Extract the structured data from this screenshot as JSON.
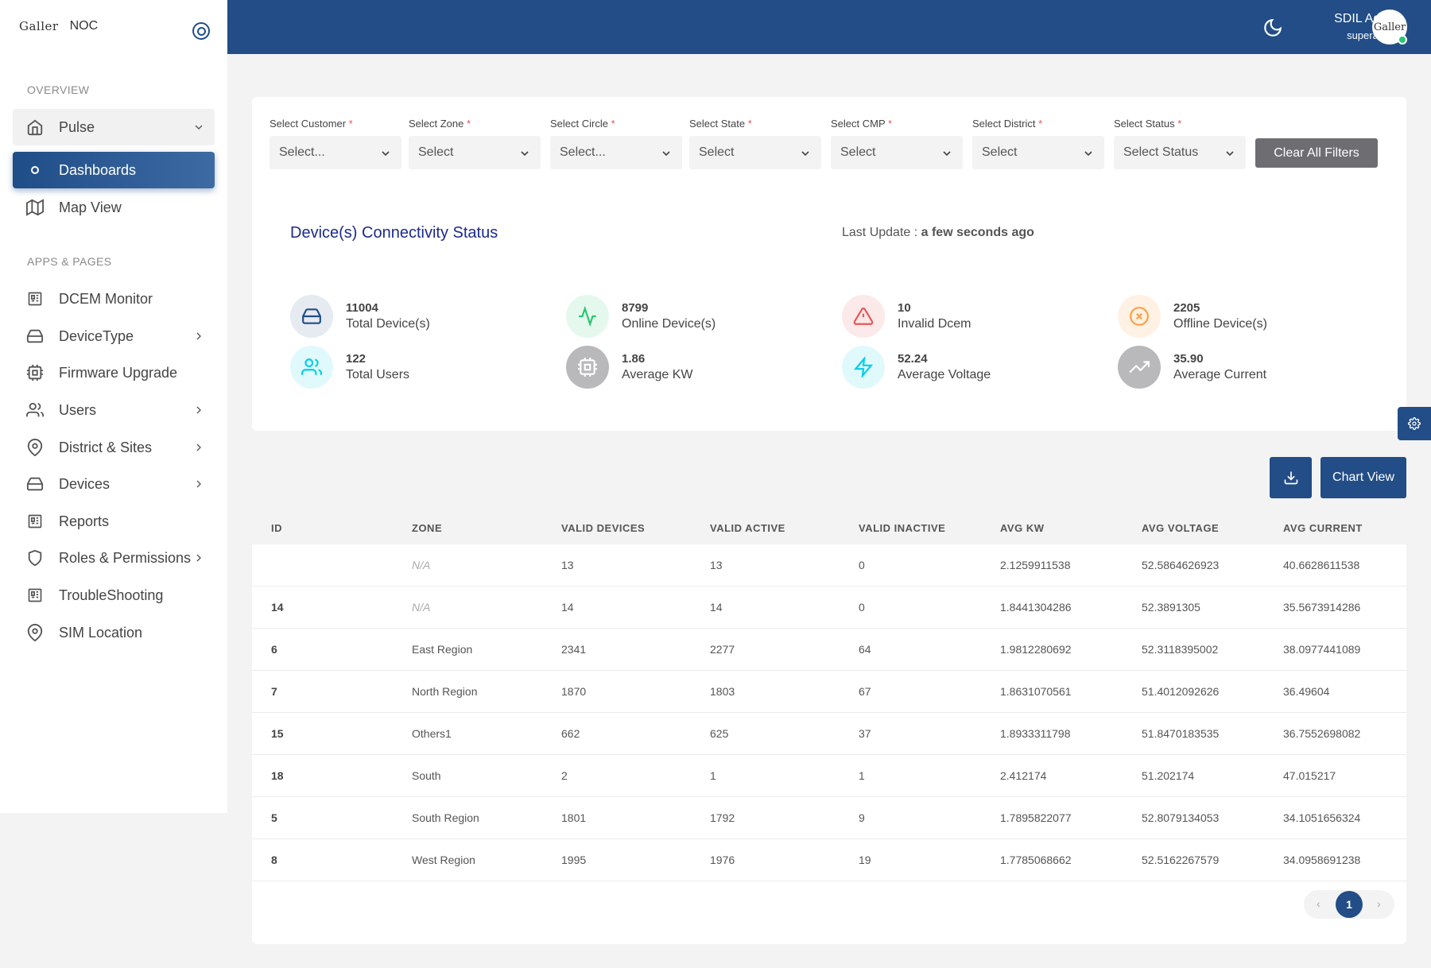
{
  "brand": {
    "logo_text": "Galler",
    "app_name": "NOC"
  },
  "sidebar": {
    "section_overview": "OVERVIEW",
    "section_apps": "APPS & PAGES",
    "items": [
      {
        "label": "Pulse",
        "icon": "home-icon"
      },
      {
        "label": "Dashboards",
        "icon": "circle-icon"
      },
      {
        "label": "Map View",
        "icon": "map-icon"
      },
      {
        "label": "DCEM Monitor",
        "icon": "grid-icon"
      },
      {
        "label": "DeviceType",
        "icon": "hard-drive-icon"
      },
      {
        "label": "Firmware Upgrade",
        "icon": "cpu-icon"
      },
      {
        "label": "Users",
        "icon": "users-icon"
      },
      {
        "label": "District & Sites",
        "icon": "map-pin-icon"
      },
      {
        "label": "Devices",
        "icon": "hard-drive-icon"
      },
      {
        "label": "Reports",
        "icon": "grid-icon"
      },
      {
        "label": "Roles & Permissions",
        "icon": "shield-icon"
      },
      {
        "label": "TroubleShooting",
        "icon": "grid-icon"
      },
      {
        "label": "SIM Location",
        "icon": "map-pin-icon"
      }
    ]
  },
  "header": {
    "user_name": "SDIL Admin",
    "user_role": "superadmin",
    "avatar_text": "Galler"
  },
  "filters": [
    {
      "label": "Select Customer",
      "value": "Select..."
    },
    {
      "label": "Select Zone",
      "value": "Select"
    },
    {
      "label": "Select Circle",
      "value": "Select..."
    },
    {
      "label": "Select State",
      "value": "Select"
    },
    {
      "label": "Select CMP",
      "value": "Select"
    },
    {
      "label": "Select District",
      "value": "Select"
    },
    {
      "label": "Select Status",
      "value": "Select Status"
    }
  ],
  "required_mark": "*",
  "clear_filters_label": "Clear All Filters",
  "status": {
    "title": "Device(s) Connectivity Status",
    "last_update_label": "Last Update : ",
    "last_update_value": "a few seconds ago",
    "stats": [
      {
        "value": "11004",
        "label": "Total Device(s)",
        "icon": "hard-drive-icon",
        "color": "#224d86"
      },
      {
        "value": "8799",
        "label": "Online Device(s)",
        "icon": "activity-icon",
        "color": "#28c76f"
      },
      {
        "value": "10",
        "label": "Invalid Dcem",
        "icon": "alert-triangle-icon",
        "color": "#ea5455"
      },
      {
        "value": "2205",
        "label": "Offline Device(s)",
        "icon": "x-circle-icon",
        "color": "#ff9f43"
      },
      {
        "value": "122",
        "label": "Total Users",
        "icon": "users-icon",
        "color": "#00cfe8"
      },
      {
        "value": "1.86",
        "label": "Average KW",
        "icon": "cpu-icon",
        "color": "#82868b"
      },
      {
        "value": "52.24",
        "label": "Average Voltage",
        "icon": "zap-icon",
        "color": "#00cfe8"
      },
      {
        "value": "35.90",
        "label": "Average Current",
        "icon": "trending-up-icon",
        "color": "#82868b"
      }
    ]
  },
  "actions": {
    "chart_view_label": "Chart View"
  },
  "table": {
    "columns": [
      "ID",
      "ZONE",
      "VALID DEVICES",
      "VALID ACTIVE",
      "VALID INACTIVE",
      "AVG KW",
      "AVG VOLTAGE",
      "AVG CURRENT"
    ],
    "rows": [
      [
        "",
        "N/A",
        "13",
        "13",
        "0",
        "2.1259911538",
        "52.5864626923",
        "40.6628611538"
      ],
      [
        "14",
        "N/A",
        "14",
        "14",
        "0",
        "1.8441304286",
        "52.3891305",
        "35.5673914286"
      ],
      [
        "6",
        "East Region",
        "2341",
        "2277",
        "64",
        "1.9812280692",
        "52.3118395002",
        "38.0977441089"
      ],
      [
        "7",
        "North Region",
        "1870",
        "1803",
        "67",
        "1.8631070561",
        "51.4012092626",
        "36.49604"
      ],
      [
        "15",
        "Others1",
        "662",
        "625",
        "37",
        "1.8933311798",
        "51.8470183535",
        "36.7552698082"
      ],
      [
        "18",
        "South",
        "2",
        "1",
        "1",
        "2.412174",
        "51.202174",
        "47.015217"
      ],
      [
        "5",
        "South Region",
        "1801",
        "1792",
        "9",
        "1.7895822077",
        "52.8079134053",
        "34.1051656324"
      ],
      [
        "8",
        "West Region",
        "1995",
        "1976",
        "19",
        "1.7785068662",
        "52.5162267579",
        "34.0958691238"
      ]
    ]
  },
  "pagination": {
    "prev": "‹",
    "current": "1",
    "next": "›"
  }
}
